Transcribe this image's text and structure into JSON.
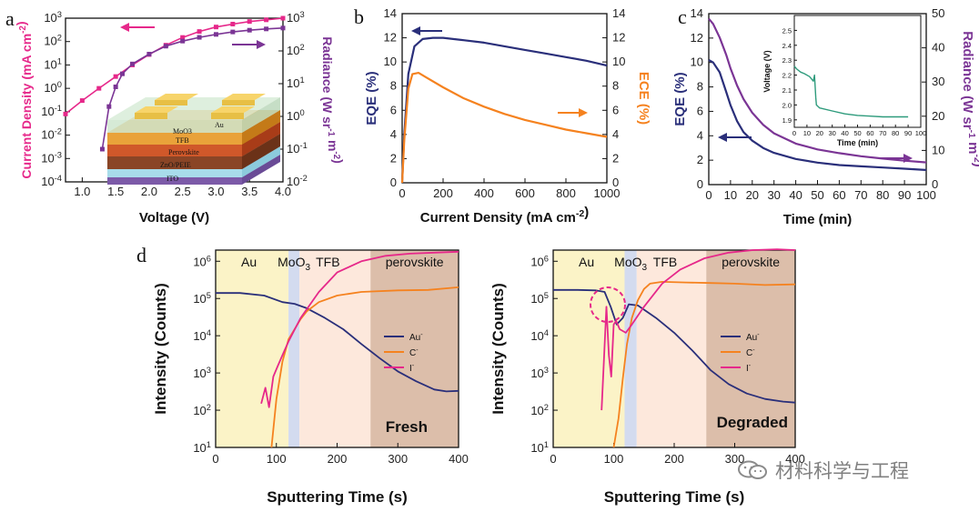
{
  "panel_letters": [
    "a",
    "b",
    "c",
    "d"
  ],
  "colors": {
    "magenta": "#e6288a",
    "purple": "#7b3595",
    "navy": "#2a2f7a",
    "orange": "#f5821f",
    "teal": "#2e9b7c",
    "au_bg": "#fbf3c7",
    "moo3_bg": "#d3dbef",
    "tfb_bg": "#fde8dc",
    "pero_bg": "#dcbeaa"
  },
  "device_layers": [
    "Au",
    "MoO3",
    "TFB",
    "Perovskite",
    "ZnO/PEIE",
    "ITO"
  ],
  "watermark": "材料科学与工程",
  "chart_data": [
    {
      "panel": "a",
      "type": "line",
      "xlabel": "Voltage (V)",
      "ylabel": "Current Density (mA cm-2)",
      "y2label": "Radiance (W sr-1 m-2)",
      "xlim": [
        0.75,
        4.0
      ],
      "ylim_log": [
        -4,
        3
      ],
      "y2lim_log": [
        -2,
        3
      ],
      "x_ticks": [
        "1.0",
        "1.5",
        "2.0",
        "2.5",
        "3.0",
        "3.5",
        "4.0"
      ],
      "y_ticks": [
        "10-4",
        "10-3",
        "10-2",
        "10-1",
        "100",
        "101",
        "102",
        "103"
      ],
      "y2_ticks": [
        "10-2",
        "10-1",
        "100",
        "101",
        "102",
        "103"
      ],
      "series": [
        {
          "axis": "left",
          "color": "#e6288a",
          "x": [
            0.75,
            1.0,
            1.25,
            1.5,
            1.75,
            2.0,
            2.25,
            2.5,
            2.75,
            3.0,
            3.25,
            3.5,
            3.75,
            4.0
          ],
          "y": [
            0.08,
            0.3,
            1.0,
            3.2,
            10,
            28,
            70,
            150,
            270,
            420,
            560,
            720,
            850,
            1000
          ]
        },
        {
          "axis": "right",
          "color": "#7b3595",
          "x": [
            1.3,
            1.4,
            1.5,
            1.6,
            1.75,
            2.0,
            2.25,
            2.5,
            2.75,
            3.0,
            3.25,
            3.5,
            3.75,
            4.0
          ],
          "y": [
            0.1,
            2.0,
            8,
            20,
            40,
            80,
            140,
            200,
            260,
            320,
            380,
            430,
            470,
            500
          ]
        }
      ]
    },
    {
      "panel": "b",
      "type": "line",
      "xlabel": "Current Density (mA cm-2)",
      "ylabel": "EQE (%)",
      "y2label": "ECE (%)",
      "xlim": [
        0,
        1000
      ],
      "ylim": [
        0,
        14
      ],
      "y2lim": [
        0,
        14
      ],
      "x_ticks": [
        "0",
        "200",
        "400",
        "600",
        "800",
        "1000"
      ],
      "y_ticks": [
        "0",
        "2",
        "4",
        "6",
        "8",
        "10",
        "12",
        "14"
      ],
      "series": [
        {
          "axis": "left",
          "color": "#2a2f7a",
          "x": [
            0,
            10,
            30,
            60,
            100,
            150,
            200,
            300,
            400,
            500,
            600,
            700,
            800,
            900,
            1000
          ],
          "y": [
            0,
            4,
            9,
            11.3,
            11.9,
            12.0,
            12.0,
            11.8,
            11.6,
            11.3,
            11.0,
            10.7,
            10.4,
            10.1,
            9.7
          ]
        },
        {
          "axis": "right",
          "color": "#f5821f",
          "x": [
            0,
            10,
            30,
            50,
            80,
            120,
            200,
            300,
            400,
            500,
            600,
            700,
            800,
            900,
            1000
          ],
          "y": [
            0,
            3.5,
            7.8,
            9.0,
            9.1,
            8.7,
            7.9,
            7.0,
            6.3,
            5.7,
            5.2,
            4.8,
            4.4,
            4.1,
            3.8
          ]
        }
      ]
    },
    {
      "panel": "c",
      "type": "line",
      "xlabel": "Time (min)",
      "ylabel": "EQE (%)",
      "y2label": "Radiance (W sr-1 m-2)",
      "xlim": [
        0,
        100
      ],
      "ylim": [
        0,
        14
      ],
      "y2lim": [
        0,
        50
      ],
      "x_ticks": [
        "0",
        "10",
        "20",
        "30",
        "40",
        "50",
        "60",
        "70",
        "80",
        "90",
        "100"
      ],
      "y_ticks": [
        "0",
        "2",
        "4",
        "6",
        "8",
        "10",
        "12",
        "14"
      ],
      "y2_ticks": [
        "0",
        "10",
        "20",
        "30",
        "40",
        "50"
      ],
      "series": [
        {
          "axis": "left",
          "color": "#2a2f7a",
          "x": [
            0,
            2,
            5,
            8,
            10,
            13,
            16,
            20,
            25,
            30,
            40,
            50,
            60,
            70,
            80,
            90,
            100
          ],
          "y": [
            10.2,
            10.0,
            9.2,
            7.6,
            6.5,
            5.2,
            4.3,
            3.6,
            3.0,
            2.6,
            2.1,
            1.8,
            1.6,
            1.5,
            1.4,
            1.3,
            1.2
          ]
        },
        {
          "axis": "right",
          "color": "#7b3595",
          "x": [
            0,
            2,
            5,
            8,
            10,
            13,
            16,
            20,
            25,
            30,
            40,
            50,
            60,
            70,
            80,
            90,
            100
          ],
          "y": [
            48.5,
            47,
            43,
            38,
            34,
            29,
            25,
            21,
            17.5,
            15,
            12,
            10.3,
            9.2,
            8.3,
            7.6,
            7.0,
            6.5
          ]
        }
      ],
      "inset": {
        "xlabel": "Time (min)",
        "ylabel": "Voltage (V)",
        "xlim": [
          0,
          100
        ],
        "ylim": [
          1.85,
          2.6
        ],
        "x_ticks": [
          "0",
          "10",
          "20",
          "30",
          "40",
          "50",
          "60",
          "70",
          "80",
          "90",
          "100"
        ],
        "y_ticks": [
          "1.9",
          "2.0",
          "2.1",
          "2.2",
          "2.3",
          "2.4",
          "2.5"
        ],
        "x": [
          0,
          2,
          5,
          8,
          12,
          15,
          16,
          17,
          17.5,
          20,
          30,
          40,
          50,
          60,
          70,
          80,
          90
        ],
        "y": [
          2.26,
          2.24,
          2.22,
          2.21,
          2.19,
          2.16,
          2.2,
          2.05,
          2.0,
          1.98,
          1.96,
          1.94,
          1.93,
          1.925,
          1.92,
          1.92,
          1.92
        ]
      }
    },
    {
      "panel": "d",
      "subtitle": "Fresh",
      "type": "line",
      "xlabel": "Sputtering Time (s)",
      "ylabel": "Intensity (Counts)",
      "xlim": [
        0,
        400
      ],
      "ylim_log": [
        1,
        6.3
      ],
      "x_ticks": [
        "0",
        "100",
        "200",
        "300",
        "400"
      ],
      "y_ticks": [
        "101",
        "102",
        "103",
        "104",
        "105",
        "106"
      ],
      "regions": [
        {
          "label": "Au",
          "from": 0,
          "to": 120
        },
        {
          "label": "MoO3",
          "from": 120,
          "to": 138
        },
        {
          "label": "TFB",
          "from": 138,
          "to": 255
        },
        {
          "label": "perovskite",
          "from": 255,
          "to": 400
        }
      ],
      "legend": [
        "Au-",
        "C-",
        "I-"
      ],
      "series": [
        {
          "name": "Au-",
          "color": "#2a2f7a",
          "x": [
            0,
            40,
            80,
            110,
            130,
            150,
            180,
            210,
            240,
            270,
            300,
            330,
            360,
            380,
            400
          ],
          "y": [
            140000,
            140000,
            120000,
            80000,
            72000,
            55000,
            30000,
            15000,
            6000,
            2500,
            1100,
            600,
            360,
            320,
            330
          ]
        },
        {
          "name": "C-",
          "color": "#f5821f",
          "x": [
            92,
            100,
            110,
            120,
            130,
            140,
            150,
            170,
            200,
            240,
            300,
            350,
            400
          ],
          "y": [
            10,
            200,
            2000,
            8000,
            15000,
            28000,
            45000,
            80000,
            120000,
            150000,
            165000,
            170000,
            200000
          ]
        },
        {
          "name": "I-",
          "color": "#e6288a",
          "x": [
            75,
            82,
            88,
            95,
            102,
            110,
            120,
            140,
            170,
            200,
            240,
            280,
            320,
            360,
            400
          ],
          "y": [
            150,
            400,
            120,
            800,
            1500,
            3000,
            7000,
            30000,
            150000,
            500000,
            1000000,
            1400000,
            1600000,
            1700000,
            1800000
          ]
        }
      ]
    },
    {
      "panel": "d",
      "subtitle": "Degraded",
      "type": "line",
      "xlabel": "Sputtering Time (s)",
      "ylabel": "Intensity (Counts)",
      "xlim": [
        0,
        400
      ],
      "ylim_log": [
        1,
        6.3
      ],
      "x_ticks": [
        "0",
        "100",
        "200",
        "300",
        "400"
      ],
      "y_ticks": [
        "101",
        "102",
        "103",
        "104",
        "105",
        "106"
      ],
      "regions": [
        {
          "label": "Au",
          "from": 0,
          "to": 118
        },
        {
          "label": "MoO3",
          "from": 118,
          "to": 138
        },
        {
          "label": "TFB",
          "from": 138,
          "to": 253
        },
        {
          "label": "perovskite",
          "from": 253,
          "to": 400
        }
      ],
      "legend": [
        "Au-",
        "C-",
        "I-"
      ],
      "series": [
        {
          "name": "Au-",
          "color": "#2a2f7a",
          "x": [
            0,
            40,
            70,
            85,
            95,
            105,
            115,
            125,
            140,
            170,
            200,
            230,
            260,
            290,
            320,
            350,
            380,
            400
          ],
          "y": [
            170000,
            170000,
            165000,
            150000,
            60000,
            20000,
            30000,
            70000,
            65000,
            30000,
            12000,
            4000,
            1200,
            500,
            280,
            200,
            170,
            160
          ]
        },
        {
          "name": "C-",
          "color": "#f5821f",
          "x": [
            100,
            108,
            115,
            122,
            130,
            140,
            150,
            160,
            180,
            220,
            260,
            300,
            350,
            400
          ],
          "y": [
            10,
            60,
            700,
            6000,
            30000,
            90000,
            180000,
            250000,
            280000,
            270000,
            260000,
            250000,
            230000,
            240000
          ]
        },
        {
          "name": "I-",
          "color": "#e6288a",
          "x": [
            80,
            88,
            92,
            96,
            100,
            104,
            110,
            120,
            130,
            150,
            180,
            210,
            250,
            290,
            330,
            370,
            400
          ],
          "y": [
            100,
            60000,
            3000,
            800,
            20000,
            25000,
            15000,
            12000,
            20000,
            60000,
            250000,
            600000,
            1200000,
            1700000,
            2000000,
            2100000,
            2000000
          ]
        }
      ]
    }
  ]
}
